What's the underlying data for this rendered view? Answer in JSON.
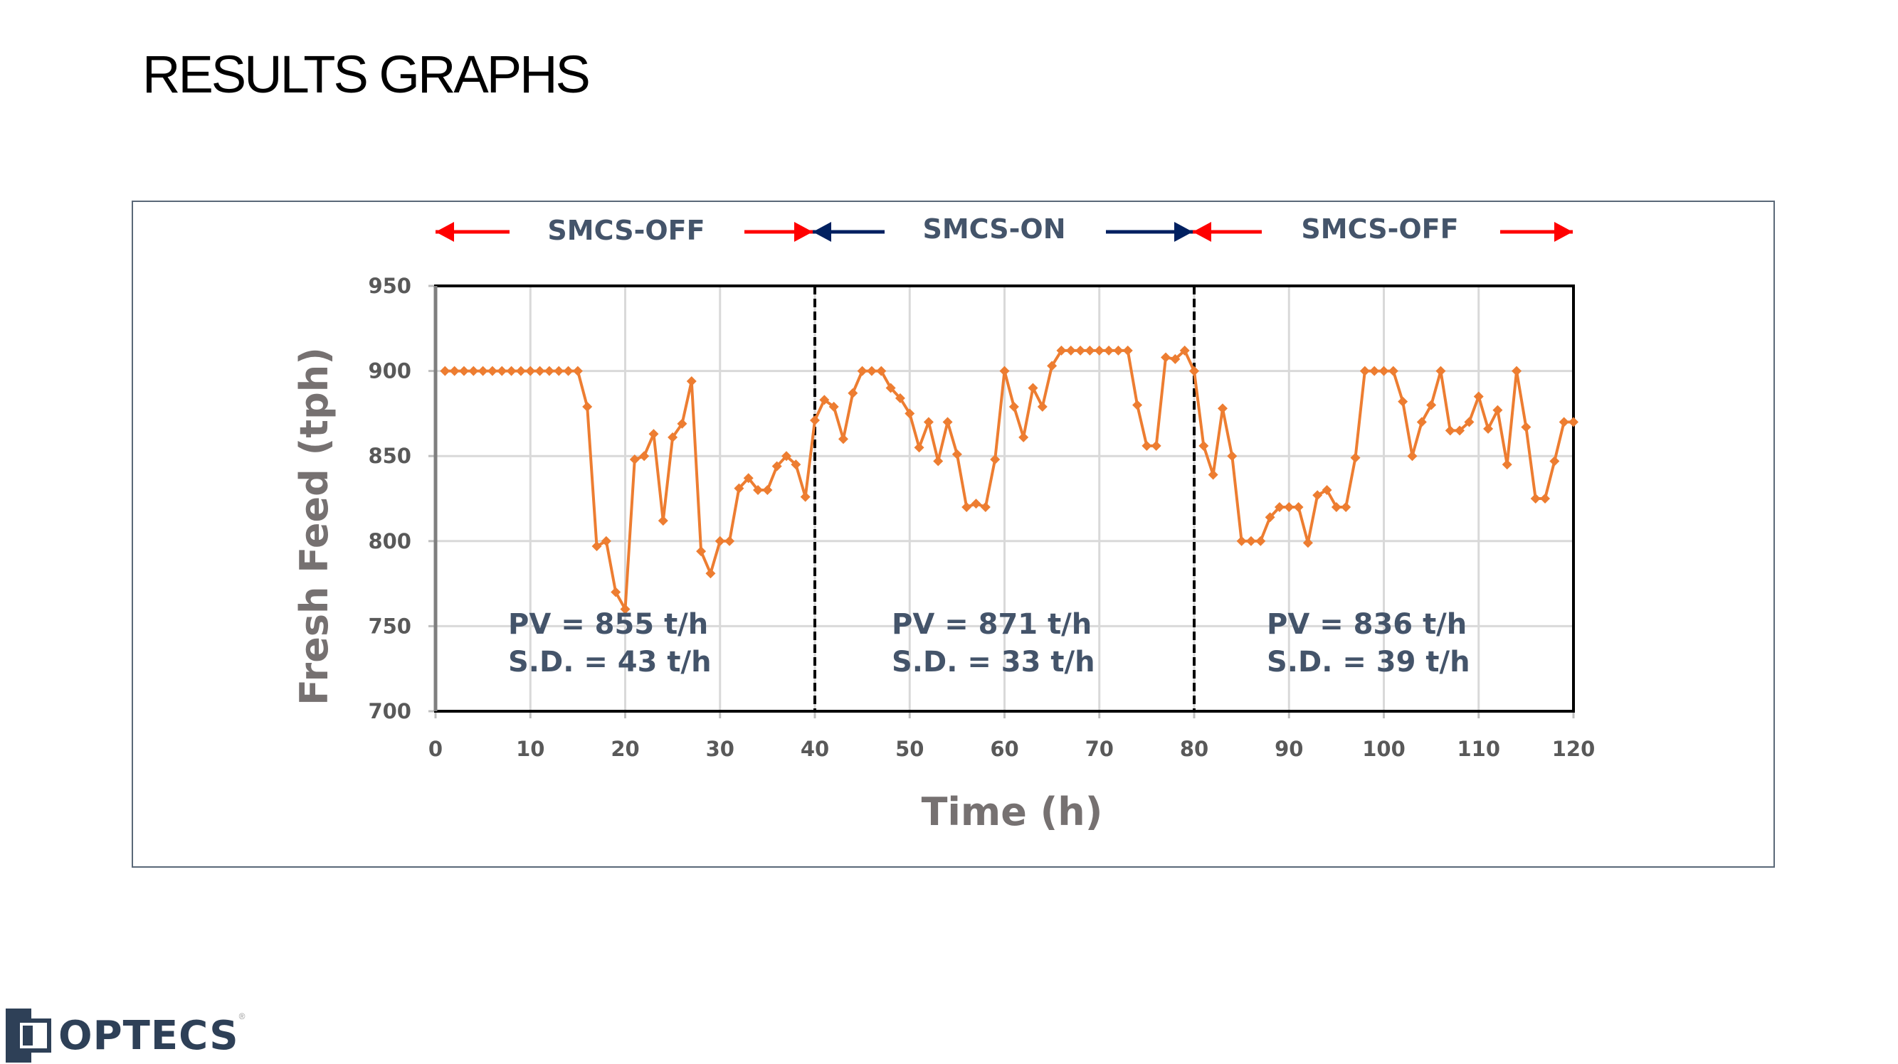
{
  "page": {
    "title": "RESULTS GRAPHS"
  },
  "logo": {
    "text": "OPTECS",
    "registered": "®",
    "color": "#2e4057"
  },
  "colors": {
    "series": "#ed7d31",
    "off_arrow": "#ff0000",
    "on_arrow": "#002060",
    "annotation": "#44546a",
    "grid": "#d9d9d9"
  },
  "phases": [
    {
      "label": "SMCS-OFF",
      "state": "off"
    },
    {
      "label": "SMCS-ON",
      "state": "on"
    },
    {
      "label": "SMCS-OFF",
      "state": "off"
    }
  ],
  "stats": [
    {
      "pv": "PV = 855 t/h",
      "sd": "S.D. = 43 t/h"
    },
    {
      "pv": "PV = 871 t/h",
      "sd": "S.D. = 33 t/h"
    },
    {
      "pv": "PV = 836 t/h",
      "sd": "S.D. = 39 t/h"
    }
  ],
  "chart_data": {
    "type": "line",
    "xlabel": "Time (h)",
    "ylabel": "Fresh Feed (tph)",
    "xlim": [
      0,
      120
    ],
    "ylim": [
      700,
      950
    ],
    "xticks": [
      "0",
      "10",
      "20",
      "30",
      "40",
      "50",
      "60",
      "70",
      "80",
      "90",
      "100",
      "110",
      "120"
    ],
    "yticks": [
      "700",
      "750",
      "800",
      "850",
      "900",
      "950"
    ],
    "grid": true,
    "marker": "diamond",
    "phase_boundaries": [
      40,
      80
    ],
    "x_start": 1,
    "x_step": 1,
    "series": [
      {
        "values": [
          900,
          900,
          900,
          900,
          900,
          900,
          900,
          900,
          900,
          900,
          900,
          900,
          900,
          900,
          900,
          879,
          797,
          800,
          770,
          760,
          848,
          850,
          863,
          812,
          861,
          869,
          894,
          794,
          781,
          800,
          800,
          831,
          837,
          830,
          830,
          844,
          850,
          845,
          826,
          871,
          883,
          879,
          860,
          887,
          900,
          900,
          900,
          890,
          884,
          875,
          855,
          870,
          847,
          870,
          851,
          820,
          822,
          820,
          848,
          900,
          879,
          861,
          890,
          879,
          903,
          912,
          912,
          912,
          912,
          912,
          912,
          912,
          912,
          880,
          856,
          856,
          908,
          907,
          912,
          900,
          856,
          839,
          878,
          850,
          800,
          800,
          800,
          814,
          820,
          820,
          820,
          799,
          827,
          830,
          820,
          820,
          849,
          900,
          900,
          900,
          900,
          882,
          850,
          870,
          880,
          900,
          865,
          865,
          870,
          885,
          866,
          877,
          845,
          900,
          867,
          825,
          825,
          847,
          870,
          870
        ]
      }
    ]
  }
}
